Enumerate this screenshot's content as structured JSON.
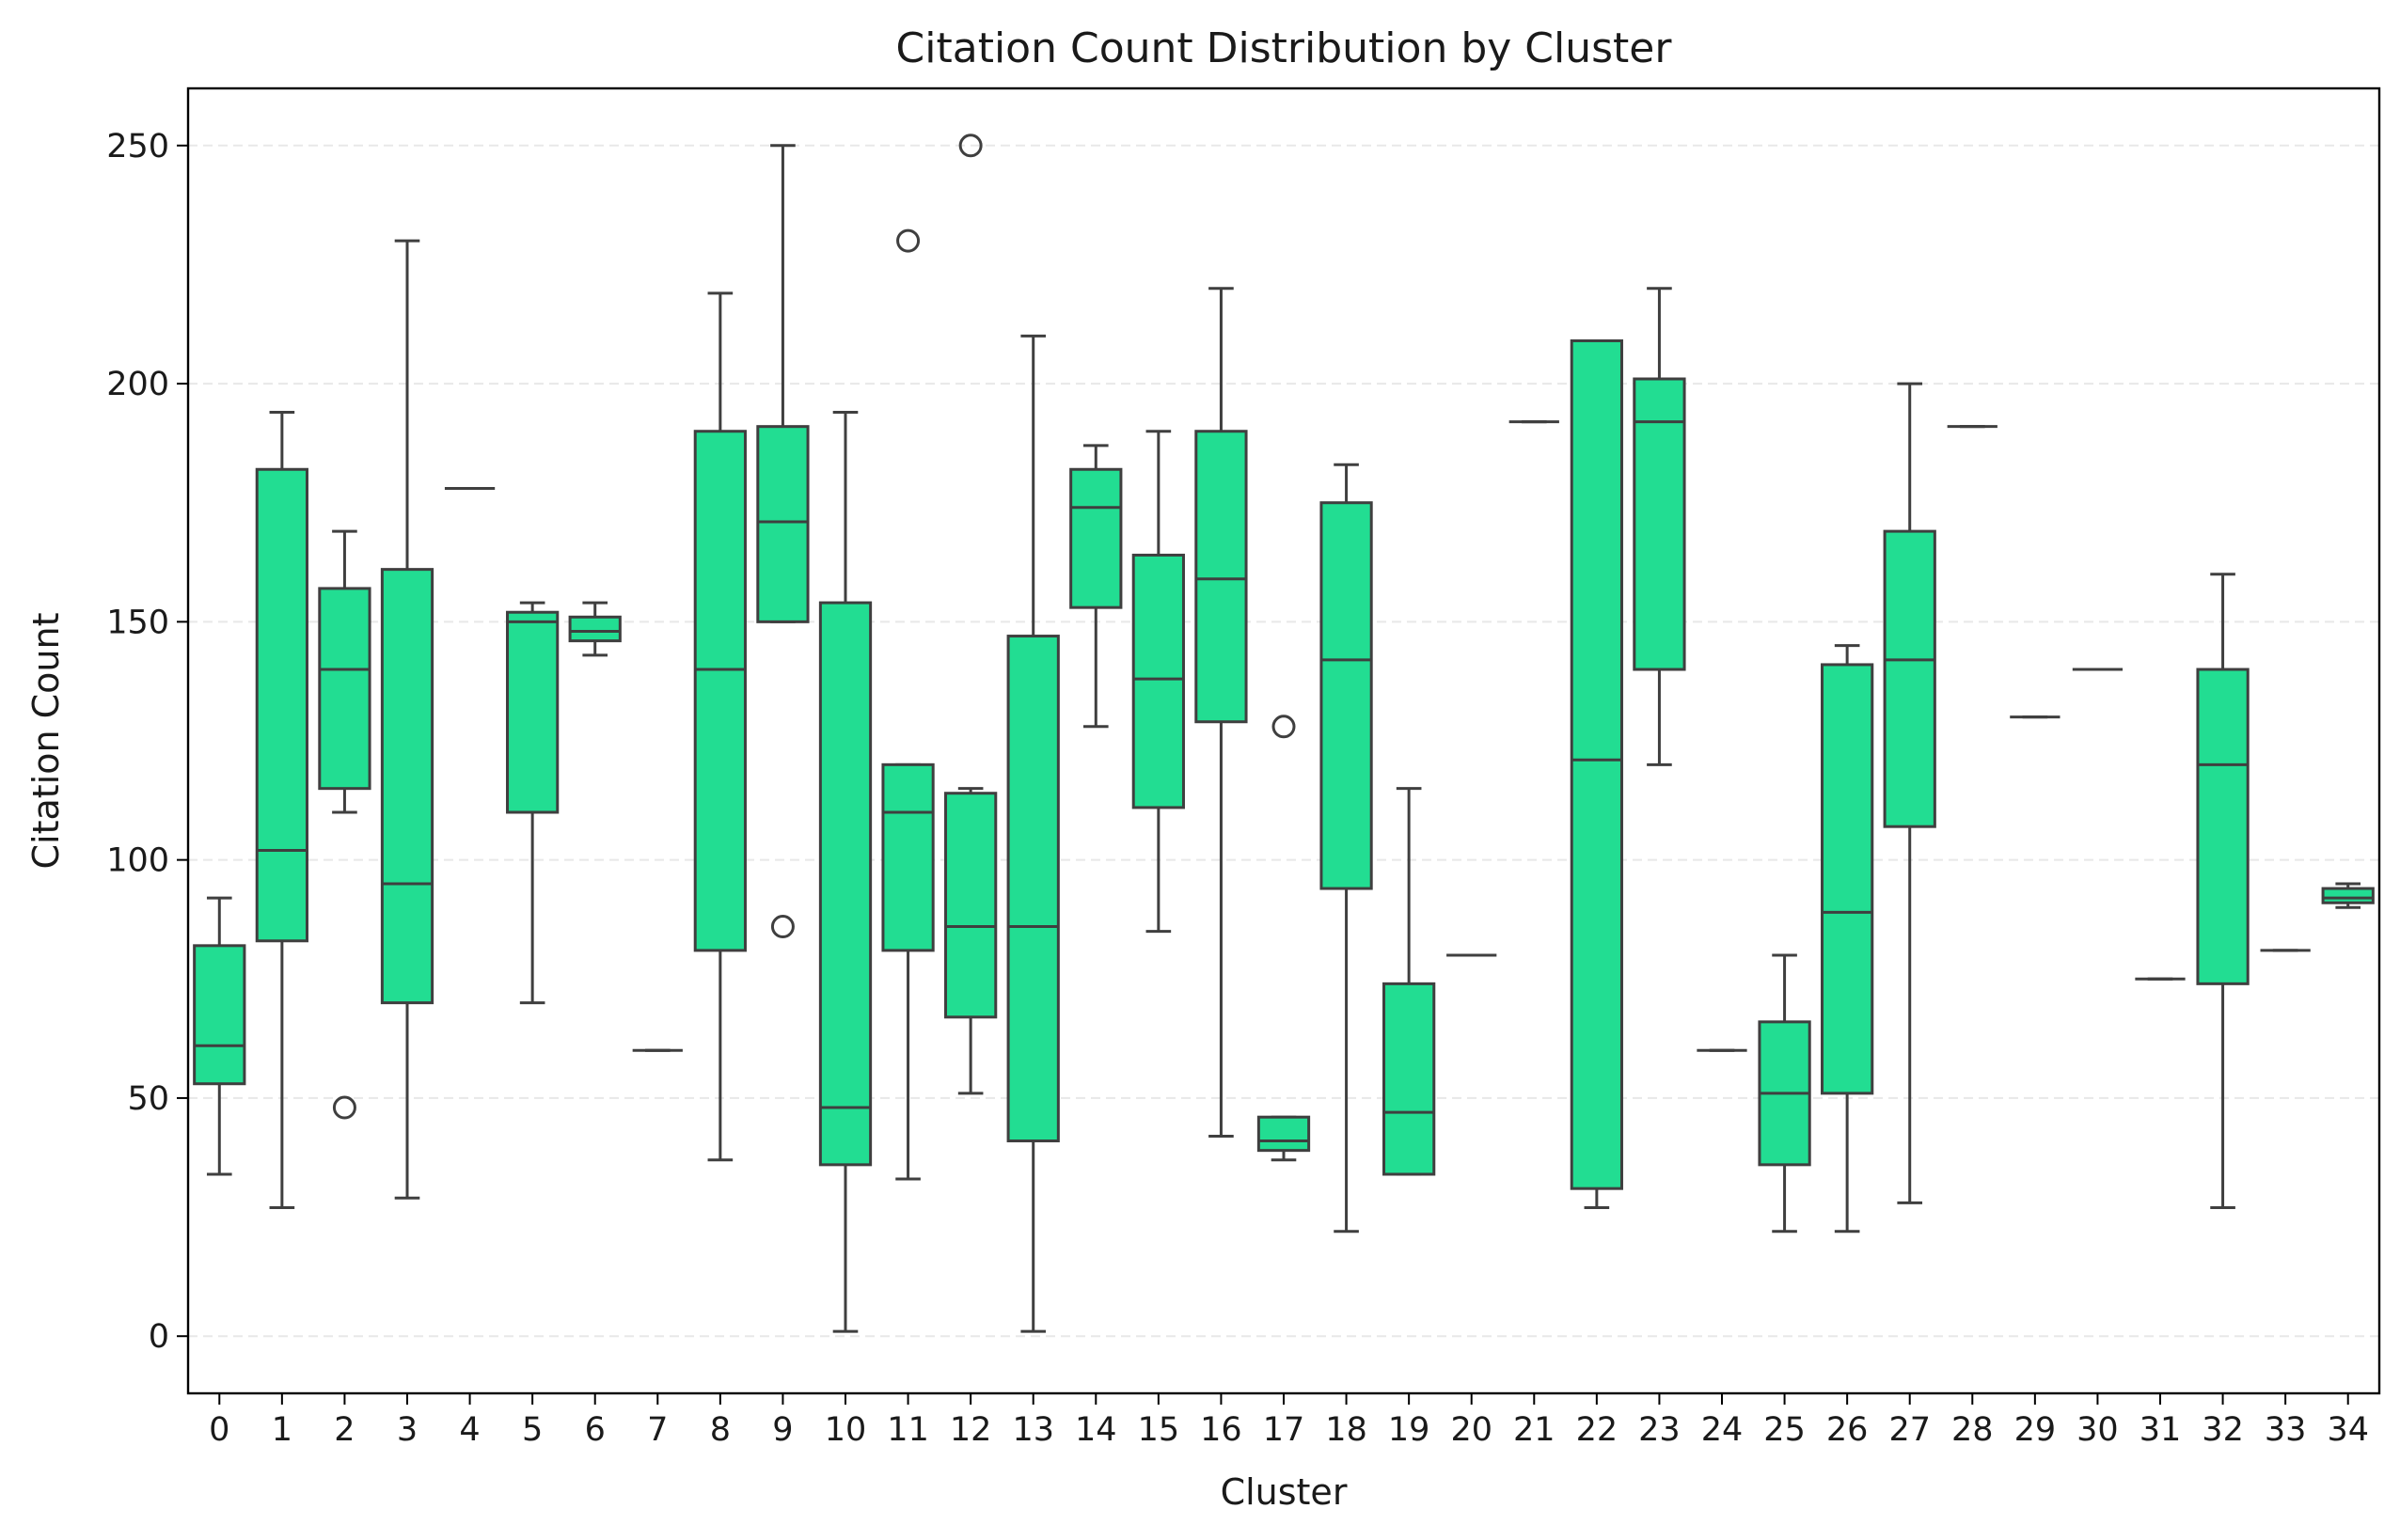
{
  "chart_data": {
    "type": "box",
    "title": "Citation Count Distribution by Cluster",
    "xlabel": "Cluster",
    "ylabel": "Citation Count",
    "ylim": [
      -12,
      262
    ],
    "yticks": [
      0,
      50,
      100,
      150,
      200,
      250
    ],
    "grid": "y-dashed",
    "colors": {
      "box_fill": "#22dd92",
      "box_edge": "#3f3f3f",
      "grid": "#e8e8e8"
    },
    "categories": [
      "0",
      "1",
      "2",
      "3",
      "4",
      "5",
      "6",
      "7",
      "8",
      "9",
      "10",
      "11",
      "12",
      "13",
      "14",
      "15",
      "16",
      "17",
      "18",
      "19",
      "20",
      "21",
      "22",
      "23",
      "24",
      "25",
      "26",
      "27",
      "28",
      "29",
      "30",
      "31",
      "32",
      "33",
      "34"
    ],
    "boxes": [
      {
        "cluster": "0",
        "whislo": 34,
        "q1": 53,
        "med": 61,
        "q3": 82,
        "whishi": 92,
        "fliers": []
      },
      {
        "cluster": "1",
        "whislo": 27,
        "q1": 83,
        "med": 102,
        "q3": 182,
        "whishi": 194,
        "fliers": []
      },
      {
        "cluster": "2",
        "whislo": 110,
        "q1": 115,
        "med": 140,
        "q3": 157,
        "whishi": 169,
        "fliers": [
          48
        ]
      },
      {
        "cluster": "3",
        "whislo": 29,
        "q1": 70,
        "med": 95,
        "q3": 161,
        "whishi": 230,
        "fliers": []
      },
      {
        "cluster": "4",
        "whislo": 178,
        "q1": 178,
        "med": 178,
        "q3": 178,
        "whishi": 178,
        "fliers": []
      },
      {
        "cluster": "5",
        "whislo": 70,
        "q1": 110,
        "med": 150,
        "q3": 152,
        "whishi": 154,
        "fliers": []
      },
      {
        "cluster": "6",
        "whislo": 143,
        "q1": 146,
        "med": 148,
        "q3": 151,
        "whishi": 154,
        "fliers": []
      },
      {
        "cluster": "7",
        "whislo": 60,
        "q1": 60,
        "med": 60,
        "q3": 60,
        "whishi": 60,
        "fliers": []
      },
      {
        "cluster": "8",
        "whislo": 37,
        "q1": 81,
        "med": 140,
        "q3": 190,
        "whishi": 219,
        "fliers": []
      },
      {
        "cluster": "9",
        "whislo": 150,
        "q1": 150,
        "med": 171,
        "q3": 191,
        "whishi": 250,
        "fliers": [
          86
        ]
      },
      {
        "cluster": "10",
        "whislo": 1,
        "q1": 36,
        "med": 48,
        "q3": 154,
        "whishi": 194,
        "fliers": []
      },
      {
        "cluster": "11",
        "whislo": 33,
        "q1": 81,
        "med": 110,
        "q3": 120,
        "whishi": 120,
        "fliers": [
          230
        ]
      },
      {
        "cluster": "12",
        "whislo": 51,
        "q1": 67,
        "med": 86,
        "q3": 114,
        "whishi": 115,
        "fliers": [
          250
        ]
      },
      {
        "cluster": "13",
        "whislo": 1,
        "q1": 41,
        "med": 86,
        "q3": 147,
        "whishi": 210,
        "fliers": []
      },
      {
        "cluster": "14",
        "whislo": 128,
        "q1": 153,
        "med": 174,
        "q3": 182,
        "whishi": 187,
        "fliers": []
      },
      {
        "cluster": "15",
        "whislo": 85,
        "q1": 111,
        "med": 138,
        "q3": 164,
        "whishi": 190,
        "fliers": []
      },
      {
        "cluster": "16",
        "whislo": 42,
        "q1": 129,
        "med": 159,
        "q3": 190,
        "whishi": 220,
        "fliers": []
      },
      {
        "cluster": "17",
        "whislo": 37,
        "q1": 39,
        "med": 41,
        "q3": 46,
        "whishi": 46,
        "fliers": [
          128
        ]
      },
      {
        "cluster": "18",
        "whislo": 22,
        "q1": 94,
        "med": 142,
        "q3": 175,
        "whishi": 183,
        "fliers": []
      },
      {
        "cluster": "19",
        "whislo": 34,
        "q1": 34,
        "med": 47,
        "q3": 74,
        "whishi": 115,
        "fliers": []
      },
      {
        "cluster": "20",
        "whislo": 80,
        "q1": 80,
        "med": 80,
        "q3": 80,
        "whishi": 80,
        "fliers": []
      },
      {
        "cluster": "21",
        "whislo": 192,
        "q1": 192,
        "med": 192,
        "q3": 192,
        "whishi": 192,
        "fliers": []
      },
      {
        "cluster": "22",
        "whislo": 27,
        "q1": 31,
        "med": 121,
        "q3": 209,
        "whishi": 209,
        "fliers": []
      },
      {
        "cluster": "23",
        "whislo": 120,
        "q1": 140,
        "med": 192,
        "q3": 201,
        "whishi": 220,
        "fliers": []
      },
      {
        "cluster": "24",
        "whislo": 60,
        "q1": 60,
        "med": 60,
        "q3": 60,
        "whishi": 60,
        "fliers": []
      },
      {
        "cluster": "25",
        "whislo": 22,
        "q1": 36,
        "med": 51,
        "q3": 66,
        "whishi": 80,
        "fliers": []
      },
      {
        "cluster": "26",
        "whislo": 22,
        "q1": 51,
        "med": 89,
        "q3": 141,
        "whishi": 145,
        "fliers": []
      },
      {
        "cluster": "27",
        "whislo": 28,
        "q1": 107,
        "med": 142,
        "q3": 169,
        "whishi": 200,
        "fliers": []
      },
      {
        "cluster": "28",
        "whislo": 191,
        "q1": 191,
        "med": 191,
        "q3": 191,
        "whishi": 191,
        "fliers": []
      },
      {
        "cluster": "29",
        "whislo": 130,
        "q1": 130,
        "med": 130,
        "q3": 130,
        "whishi": 130,
        "fliers": []
      },
      {
        "cluster": "30",
        "whislo": 140,
        "q1": 140,
        "med": 140,
        "q3": 140,
        "whishi": 140,
        "fliers": []
      },
      {
        "cluster": "31",
        "whislo": 75,
        "q1": 75,
        "med": 75,
        "q3": 75,
        "whishi": 75,
        "fliers": []
      },
      {
        "cluster": "32",
        "whislo": 27,
        "q1": 74,
        "med": 120,
        "q3": 140,
        "whishi": 160,
        "fliers": []
      },
      {
        "cluster": "33",
        "whislo": 81,
        "q1": 81,
        "med": 81,
        "q3": 81,
        "whishi": 81,
        "fliers": []
      },
      {
        "cluster": "34",
        "whislo": 90,
        "q1": 91,
        "med": 92,
        "q3": 94,
        "whishi": 95,
        "fliers": []
      }
    ]
  }
}
